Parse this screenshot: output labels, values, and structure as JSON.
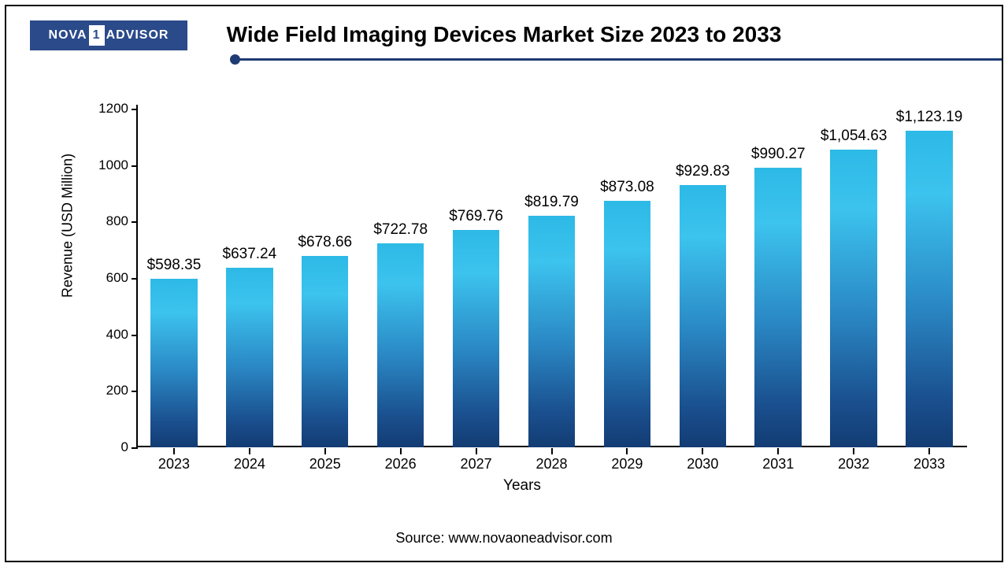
{
  "logo": {
    "part1": "NOVA",
    "mid": "1",
    "part2": "ADVISOR"
  },
  "title": "Wide Field Imaging Devices Market Size 2023 to 2033",
  "source": "Source: www.novaoneadvisor.com",
  "chart": {
    "type": "bar",
    "ylabel": "Revenue (USD Million)",
    "xlabel": "Years",
    "ylim_min": 0,
    "ylim_max": 1200,
    "ytick_step": 200,
    "yticks": [
      0,
      200,
      400,
      600,
      800,
      1000,
      1200
    ],
    "categories": [
      "2023",
      "2024",
      "2025",
      "2026",
      "2027",
      "2028",
      "2029",
      "2030",
      "2031",
      "2032",
      "2033"
    ],
    "values": [
      598.35,
      637.24,
      678.66,
      722.78,
      769.76,
      819.79,
      873.08,
      929.83,
      990.27,
      1054.63,
      1123.19
    ],
    "value_labels": [
      "$598.35",
      "$637.24",
      "$678.66",
      "$722.78",
      "$769.76",
      "$819.79",
      "$873.08",
      "$929.83",
      "$990.27",
      "$1,054.63",
      "$1,123.19"
    ],
    "bar_top_color": "#2db9e6",
    "bar_bottom_color": "#133c73",
    "axis_color": "#000000",
    "accent_color": "#1f3b73",
    "background_color": "#ffffff",
    "label_fontsize": 19,
    "axis_fontsize": 18,
    "title_fontsize": 28,
    "bar_width_ratio": 0.62
  }
}
